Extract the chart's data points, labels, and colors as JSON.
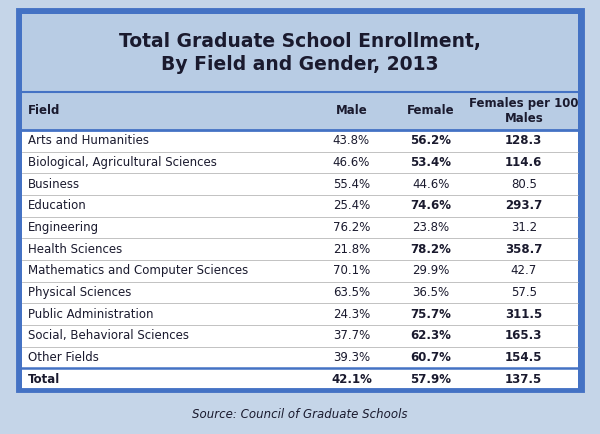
{
  "title": "Total Graduate School Enrollment,\nBy Field and Gender, 2013",
  "source": "Source: Council of Graduate Schools",
  "col_headers": [
    "Field",
    "Male",
    "Female",
    "Females per 100\nMales"
  ],
  "rows": [
    [
      "Arts and Humanities",
      "43.8%",
      "56.2%",
      "128.3"
    ],
    [
      "Biological, Agricultural Sciences",
      "46.6%",
      "53.4%",
      "114.6"
    ],
    [
      "Business",
      "55.4%",
      "44.6%",
      "80.5"
    ],
    [
      "Education",
      "25.4%",
      "74.6%",
      "293.7"
    ],
    [
      "Engineering",
      "76.2%",
      "23.8%",
      "31.2"
    ],
    [
      "Health Sciences",
      "21.8%",
      "78.2%",
      "358.7"
    ],
    [
      "Mathematics and Computer Sciences",
      "70.1%",
      "29.9%",
      "42.7"
    ],
    [
      "Physical Sciences",
      "63.5%",
      "36.5%",
      "57.5"
    ],
    [
      "Public Administration",
      "24.3%",
      "75.7%",
      "311.5"
    ],
    [
      "Social, Behavioral Sciences",
      "37.7%",
      "62.3%",
      "165.3"
    ],
    [
      "Other Fields",
      "39.3%",
      "60.7%",
      "154.5"
    ]
  ],
  "total_row": [
    "Total",
    "42.1%",
    "57.9%",
    "137.5"
  ],
  "bold_female_threshold": 50.0,
  "header_bg": "#b8cce4",
  "title_bg": "#b8cce4",
  "outer_border_color": "#4472c4",
  "table_bg": "#ffffff",
  "fig_bg": "#c5d5e8",
  "text_color": "#1a1a2e",
  "figsize": [
    6.0,
    4.34
  ],
  "dpi": 100
}
